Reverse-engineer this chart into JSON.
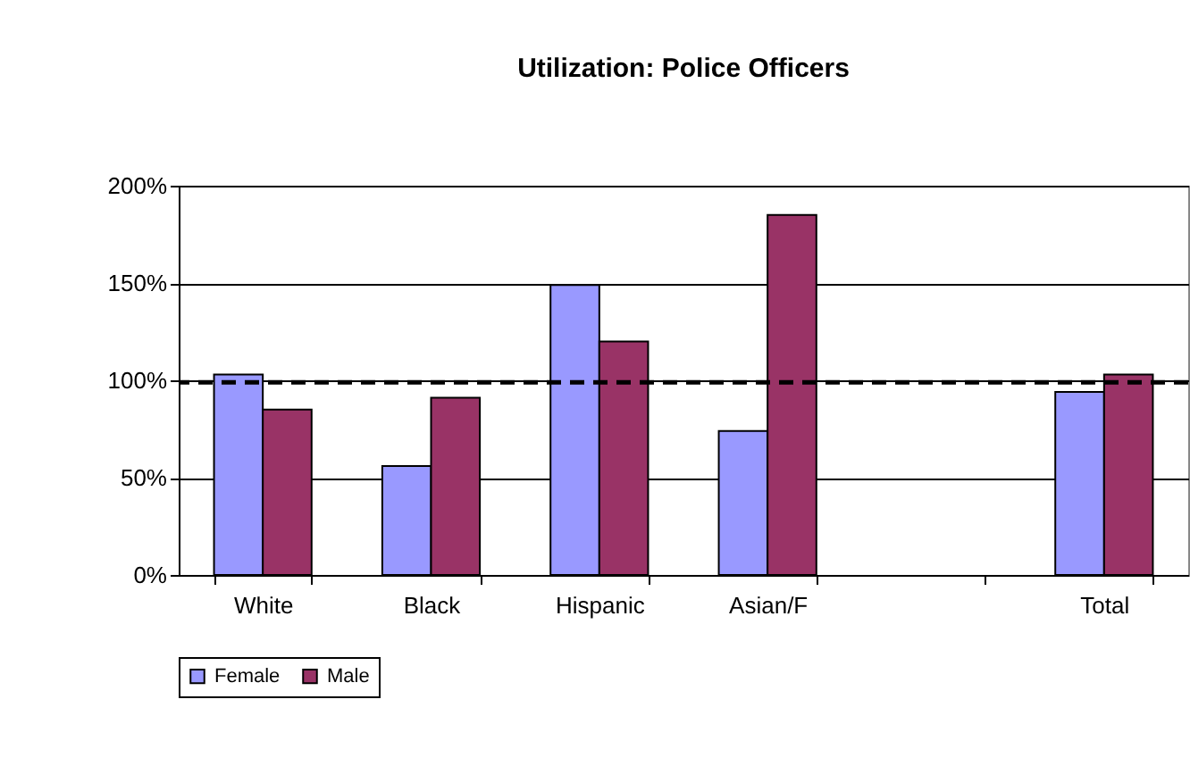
{
  "chart_data": {
    "type": "bar",
    "title": "Utilization: Police Officers",
    "categories": [
      "White",
      "Black",
      "Hispanic",
      "Asian/F",
      null,
      "Total"
    ],
    "series": [
      {
        "name": "Female",
        "color": "#9999ff",
        "values": [
          103,
          56,
          149,
          74,
          null,
          94
        ]
      },
      {
        "name": "Male",
        "color": "#993366",
        "values": [
          85,
          91,
          120,
          185,
          null,
          103
        ]
      }
    ],
    "ylim": [
      0,
      200
    ],
    "yticks": [
      {
        "value": 0,
        "label": "0%"
      },
      {
        "value": 50,
        "label": "50%"
      },
      {
        "value": 100,
        "label": "100%"
      },
      {
        "value": 150,
        "label": "150%"
      },
      {
        "value": 200,
        "label": "200%"
      }
    ],
    "grid": "y",
    "legend": "bottom",
    "ref_lines": [
      {
        "axis": "y",
        "value": 99,
        "line_style": "dashed",
        "color": "#000000"
      }
    ]
  }
}
